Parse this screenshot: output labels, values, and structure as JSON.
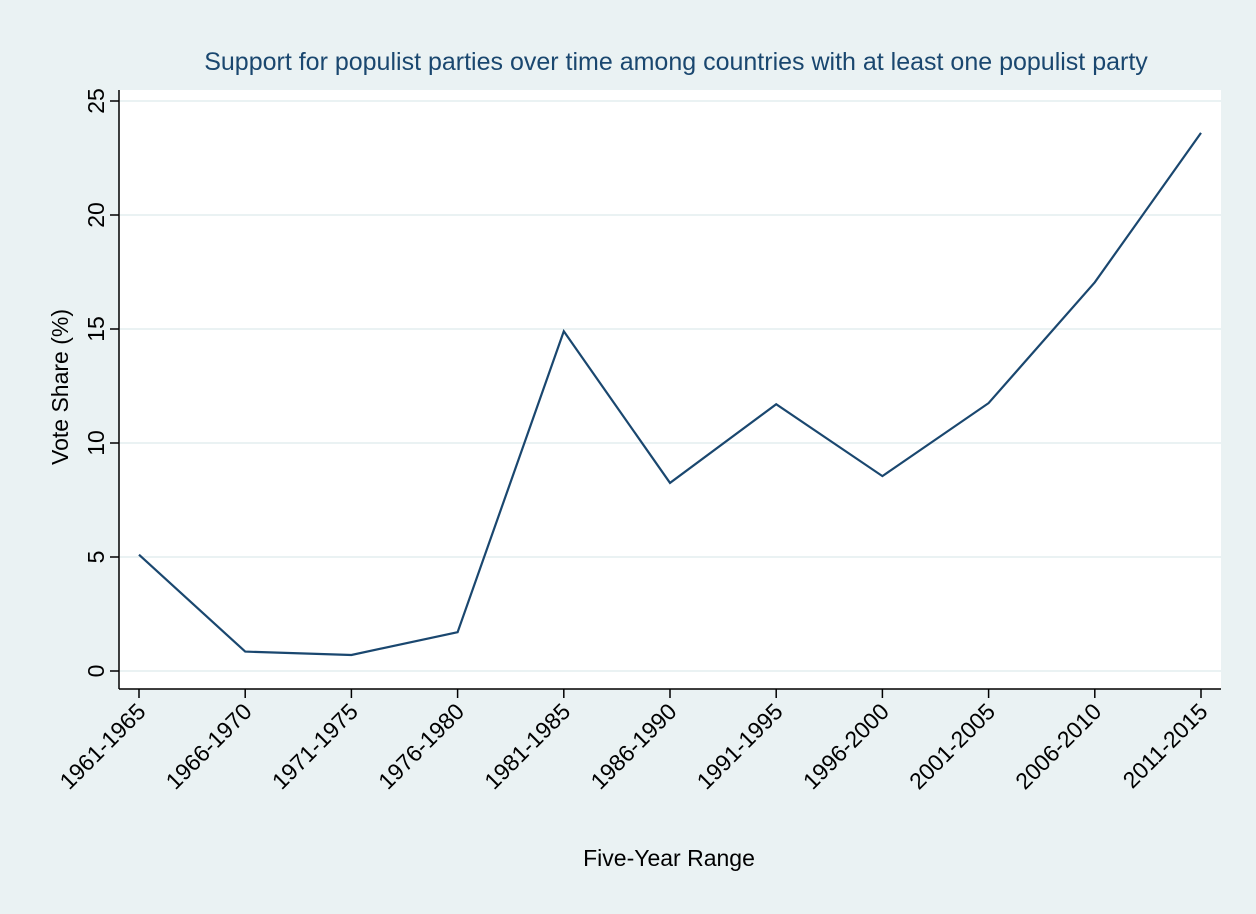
{
  "chart_data": {
    "type": "line",
    "title": "Support for populist parties over time among countries with at least one populist party",
    "xlabel": "Five-Year Range",
    "ylabel": "Vote Share (%)",
    "categories": [
      "1961-1965",
      "1966-1970",
      "1971-1975",
      "1976-1980",
      "1981-1985",
      "1986-1990",
      "1991-1995",
      "1996-2000",
      "2001-2005",
      "2006-2010",
      "2011-2015"
    ],
    "series": [
      {
        "values": [
          5.1,
          0.85,
          0.7,
          1.7,
          14.9,
          8.25,
          11.7,
          8.55,
          11.75,
          17.05,
          23.6
        ],
        "color": "#1a476f"
      }
    ],
    "ylim": [
      0,
      25
    ],
    "yticks": [
      0,
      5,
      10,
      15,
      20,
      25
    ],
    "grid": true,
    "legend": "none",
    "colors": {
      "background": "#eaf2f3",
      "plot_background": "#ffffff",
      "gridline": "#eaf2f3",
      "title": "#1a476f",
      "axis": "#000000"
    }
  }
}
